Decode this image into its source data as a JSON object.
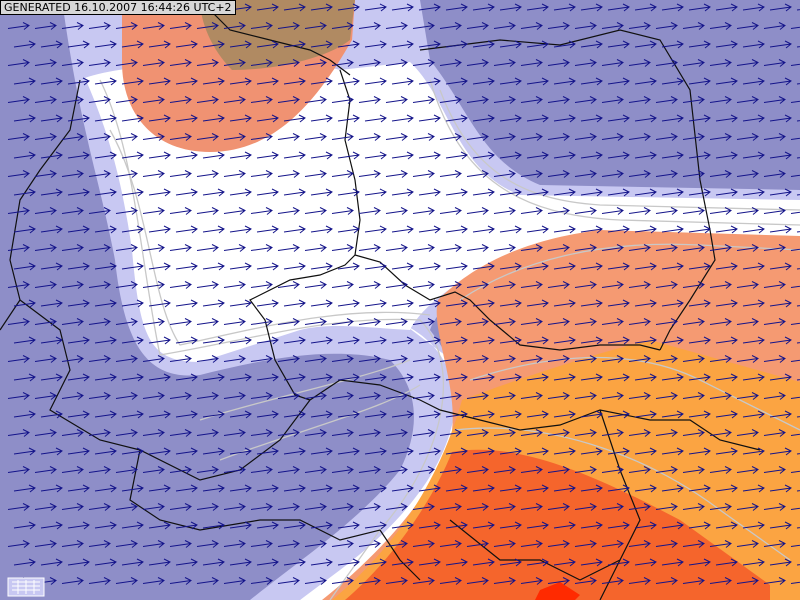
{
  "header": {
    "label": "GENERATED 16.10.2007 16:44:26 UTC+2"
  }
}
